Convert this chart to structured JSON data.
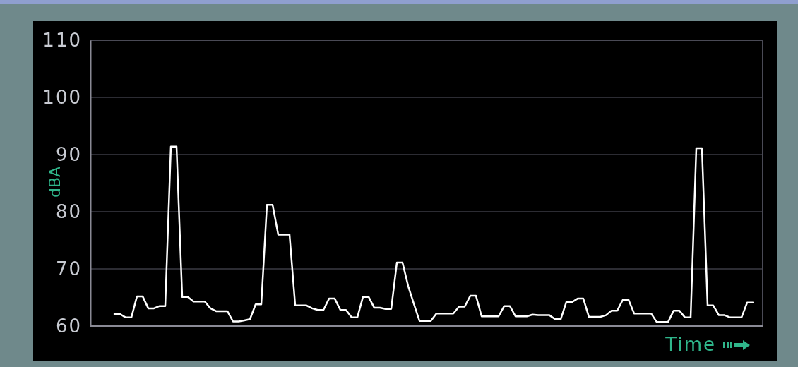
{
  "chart_data": {
    "type": "line",
    "xlabel": "Time",
    "ylabel": "dBA",
    "categories": [
      null,
      null,
      null,
      null,
      null,
      null,
      null,
      null,
      null,
      null,
      null,
      null,
      null,
      null,
      null,
      null,
      null,
      null,
      null,
      null,
      null,
      null,
      null,
      null,
      null,
      null,
      null,
      null,
      null,
      null,
      null,
      null,
      null,
      null,
      null,
      null,
      null,
      null,
      null,
      null,
      null,
      null,
      null,
      null,
      null,
      null,
      null,
      null,
      null,
      null,
      null,
      null,
      null,
      null,
      null,
      null,
      null,
      null,
      null,
      null,
      null,
      null,
      null,
      null,
      null,
      null,
      null,
      null,
      null,
      null,
      null,
      null,
      null,
      null,
      null,
      null,
      null,
      null,
      null,
      null,
      null,
      null,
      null,
      null,
      null,
      null,
      null,
      null,
      null,
      null,
      null,
      null,
      null,
      null,
      null,
      null,
      null,
      null,
      null,
      null,
      null,
      null,
      null,
      null,
      null,
      null,
      null,
      null,
      null,
      null,
      null,
      null,
      null,
      null
    ],
    "series": [
      {
        "color": "#ffffff",
        "values": [
          62.1,
          62.1,
          61.5,
          61.5,
          65.2,
          65.2,
          63.1,
          63.1,
          63.5,
          63.5,
          91.4,
          91.4,
          65.1,
          65.1,
          64.3,
          64.3,
          64.3,
          63.1,
          62.6,
          62.6,
          62.6,
          60.8,
          60.8,
          61.0,
          61.2,
          63.8,
          63.8,
          81.2,
          81.2,
          76.0,
          76.0,
          76.0,
          63.6,
          63.6,
          63.6,
          63.1,
          62.8,
          62.8,
          64.8,
          64.8,
          62.8,
          62.8,
          61.5,
          61.5,
          65.1,
          65.1,
          63.2,
          63.2,
          63.0,
          63.0,
          71.1,
          71.1,
          67.0,
          63.9,
          60.9,
          60.9,
          60.9,
          62.2,
          62.2,
          62.2,
          62.2,
          63.4,
          63.4,
          65.3,
          65.3,
          61.7,
          61.7,
          61.7,
          61.7,
          63.5,
          63.5,
          61.7,
          61.7,
          61.7,
          62.0,
          61.9,
          61.9,
          61.9,
          61.2,
          61.2,
          64.2,
          64.2,
          64.8,
          64.8,
          61.6,
          61.6,
          61.6,
          61.9,
          62.7,
          62.7,
          64.6,
          64.6,
          62.2,
          62.2,
          62.2,
          62.2,
          60.7,
          60.7,
          60.7,
          62.7,
          62.7,
          61.5,
          61.5,
          91.1,
          91.1,
          63.6,
          63.6,
          61.9,
          61.9,
          61.5,
          61.5,
          61.5,
          64.1,
          64.1
        ]
      }
    ],
    "ylim": [
      60,
      110
    ],
    "yticks": [
      60,
      70,
      80,
      90,
      100,
      110
    ],
    "grid": "y",
    "tick_labels": "y",
    "marker": "none",
    "line_style": "solid"
  }
}
